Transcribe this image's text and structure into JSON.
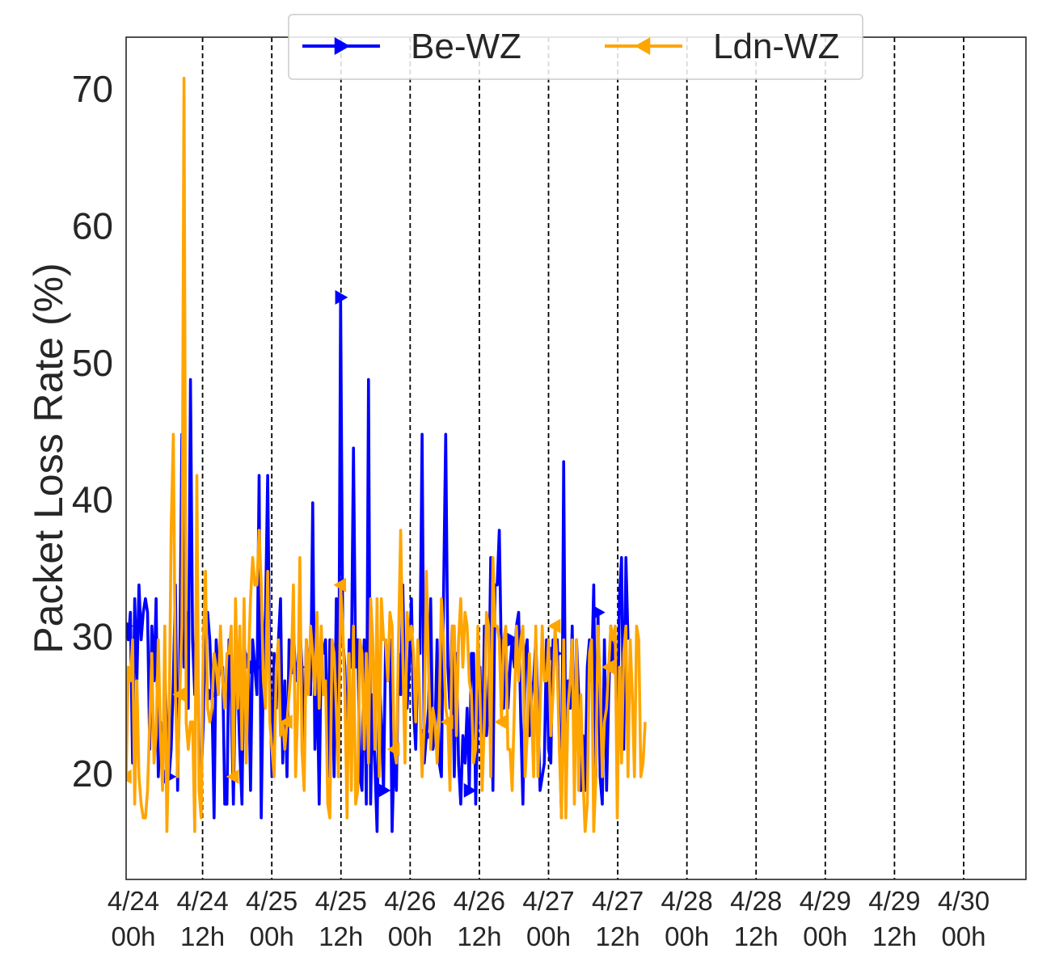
{
  "chart_data": {
    "type": "line",
    "ylabel": "Packet Loss Rate (%)",
    "xlabel": "",
    "ylim": [
      12.5,
      74
    ],
    "yticks": [
      20,
      30,
      40,
      50,
      60,
      70
    ],
    "xlim": [
      -0.0526,
      6.45
    ],
    "grid": false,
    "legend": "top-center",
    "vlines_x": [
      0.5,
      1.0,
      1.5,
      2.0,
      2.5,
      3.0,
      3.5,
      4.0,
      4.5,
      5.0,
      5.5,
      6.0
    ],
    "xticks": [
      {
        "x": 0.0,
        "line1": "4/24",
        "line2": "00h"
      },
      {
        "x": 0.5,
        "line1": "4/24",
        "line2": "12h"
      },
      {
        "x": 1.0,
        "line1": "4/25",
        "line2": "00h"
      },
      {
        "x": 1.5,
        "line1": "4/25",
        "line2": "12h"
      },
      {
        "x": 2.0,
        "line1": "4/26",
        "line2": "00h"
      },
      {
        "x": 2.5,
        "line1": "4/26",
        "line2": "12h"
      },
      {
        "x": 3.0,
        "line1": "4/27",
        "line2": "00h"
      },
      {
        "x": 3.5,
        "line1": "4/27",
        "line2": "12h"
      },
      {
        "x": 4.0,
        "line1": "4/28",
        "line2": "00h"
      },
      {
        "x": 4.5,
        "line1": "4/28",
        "line2": "12h"
      },
      {
        "x": 5.0,
        "line1": "4/29",
        "line2": "00h"
      },
      {
        "x": 5.5,
        "line1": "4/29",
        "line2": "12h"
      },
      {
        "x": 6.0,
        "line1": "4/30",
        "line2": "00h"
      }
    ],
    "series": [
      {
        "name": "Be-WZ",
        "color": "#0000ff",
        "marker": "triangle-right",
        "x0": -0.0526,
        "dx": 0.0155,
        "markevery": 20,
        "values": [
          31,
          30,
          32,
          21,
          33,
          27,
          34,
          30,
          32,
          33,
          32,
          22,
          31,
          27,
          33,
          20,
          24,
          20,
          28,
          23,
          20,
          22,
          27,
          34,
          19,
          28,
          45,
          28,
          32,
          25,
          49,
          30,
          26,
          35,
          22,
          20,
          24,
          32,
          32,
          30,
          26,
          17,
          30,
          27,
          28,
          28,
          18,
          18,
          30,
          26,
          18,
          28,
          27,
          22,
          18,
          30,
          28,
          29,
          19,
          30,
          28,
          26,
          42,
          17,
          28,
          32,
          42,
          27,
          20,
          29,
          25,
          30,
          33,
          21,
          27,
          20,
          30,
          28,
          31,
          27,
          28,
          31,
          28,
          22,
          30,
          27,
          26,
          40,
          22,
          28,
          18,
          30,
          29,
          30,
          20,
          30,
          28,
          20,
          33,
          20,
          55,
          30,
          28,
          21,
          30,
          28,
          44,
          28,
          30,
          20,
          19,
          30,
          18,
          49,
          18,
          26,
          21,
          16,
          28,
          24,
          19,
          30,
          27,
          30,
          16,
          22,
          19,
          29,
          26,
          34,
          25,
          25,
          28,
          33,
          25,
          22,
          29,
          29,
          45,
          21,
          23,
          25,
          33,
          22,
          23,
          30,
          21,
          20,
          33,
          45,
          28,
          25,
          31,
          20,
          29,
          21,
          18,
          23,
          21,
          25,
          19,
          29,
          29,
          18,
          25,
          28,
          20,
          31,
          23,
          25,
          36,
          19,
          34,
          34,
          38,
          28,
          25,
          30,
          25,
          28,
          30,
          28,
          31,
          32,
          24,
          18,
          29,
          30,
          23,
          26,
          27,
          30,
          25,
          19,
          20,
          21,
          30,
          22,
          21,
          30,
          29,
          30,
          23,
          17,
          43,
          20,
          27,
          25,
          31,
          20,
          30,
          26,
          19,
          23,
          19,
          28,
          30,
          27,
          34,
          20,
          32,
          20,
          18,
          30,
          19,
          26,
          31,
          28,
          30,
          21,
          33,
          36,
          22,
          36,
          30
        ]
      },
      {
        "name": "Ldn-WZ",
        "color": "#ffa500",
        "marker": "triangle-left",
        "x0": -0.0526,
        "dx": 0.0155,
        "markevery": 25,
        "values": [
          20,
          28,
          27,
          30,
          18,
          27,
          20,
          18,
          17,
          17,
          19,
          24,
          29,
          21,
          23,
          30,
          23,
          19,
          31,
          16,
          23,
          38,
          45,
          26,
          20,
          26,
          31,
          71,
          24,
          22,
          24,
          24,
          16,
          42,
          19,
          17,
          30,
          35,
          25,
          24,
          25,
          29,
          28,
          26,
          31,
          27,
          25,
          29,
          29,
          31,
          20,
          33,
          25,
          31,
          22,
          33,
          21,
          28,
          33,
          36,
          34,
          34,
          38,
          34,
          27,
          25,
          35,
          24,
          22,
          20,
          28,
          30,
          23,
          24,
          22,
          24,
          26,
          28,
          34,
          20,
          25,
          36,
          22,
          19,
          30,
          26,
          31,
          29,
          26,
          32,
          25,
          31,
          26,
          27,
          18,
          17,
          30,
          29,
          25,
          20,
          34,
          31,
          26,
          17,
          29,
          19,
          31,
          18,
          19,
          30,
          29,
          22,
          29,
          21,
          33,
          30,
          22,
          33,
          20,
          33,
          30,
          30,
          27,
          32,
          31,
          22,
          21,
          30,
          38,
          29,
          21,
          32,
          30,
          31,
          29,
          24,
          30,
          25,
          20,
          24,
          35,
          28,
          22,
          25,
          24,
          21,
          25,
          33,
          30,
          25,
          24,
          19,
          31,
          31,
          23,
          30,
          33,
          28,
          32,
          31,
          27,
          26,
          21,
          22,
          31,
          26,
          19,
          24,
          32,
          31,
          20,
          36,
          31,
          31,
          30,
          24,
          30,
          31,
          22,
          22,
          19,
          25,
          31,
          27,
          30,
          31,
          20,
          23,
          29,
          25,
          20,
          31,
          20,
          25,
          31,
          27,
          27,
          30,
          23,
          26,
          31,
          28,
          22,
          17,
          30,
          17,
          25,
          27,
          30,
          18,
          30,
          19,
          26,
          20,
          16,
          18,
          29,
          30,
          16,
          20,
          31,
          27,
          20,
          24,
          25,
          28,
          31,
          30,
          31,
          17,
          28,
          21,
          29,
          31,
          20,
          30,
          26,
          20,
          31,
          30,
          20,
          21,
          24
        ]
      }
    ]
  }
}
